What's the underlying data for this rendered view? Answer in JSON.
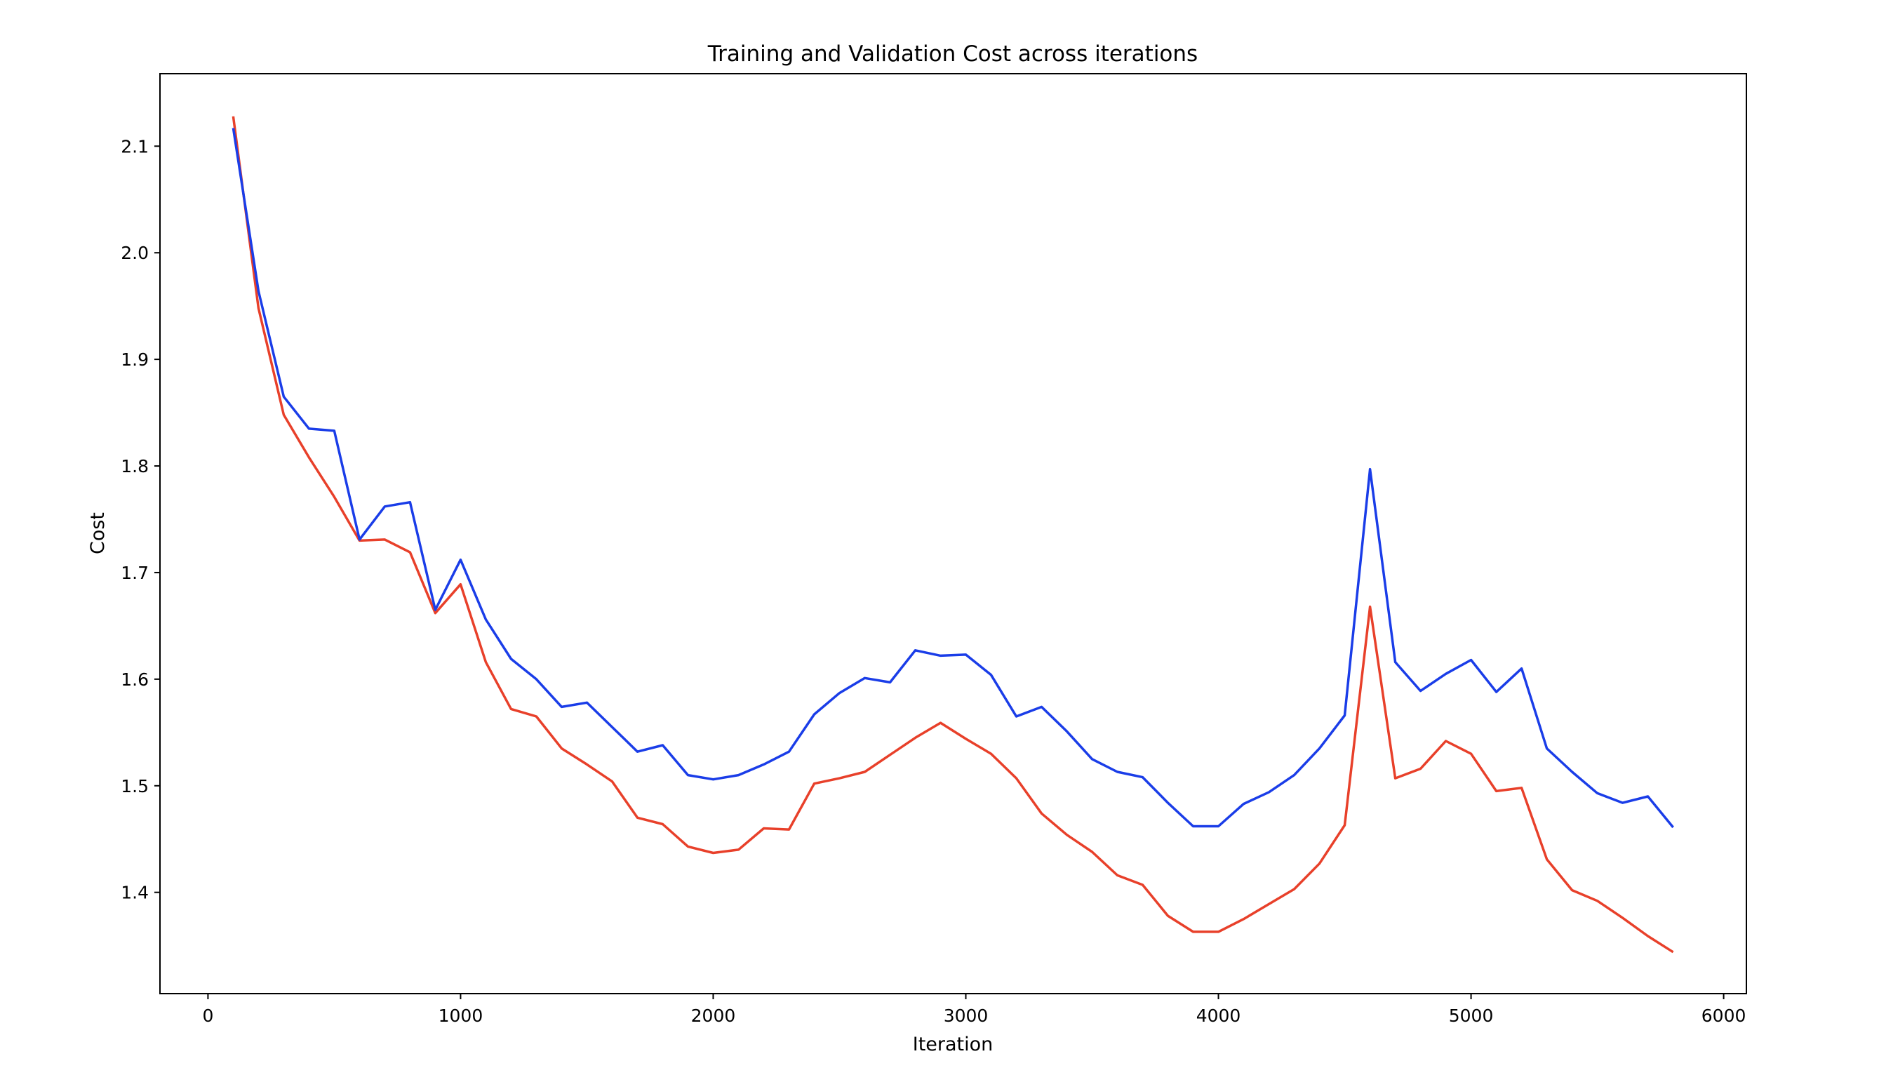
{
  "chart_data": {
    "type": "line",
    "title": "Training and Validation Cost across iterations",
    "xlabel": "Iteration",
    "ylabel": "Cost",
    "xlim": [
      -190,
      6090
    ],
    "ylim": [
      1.305,
      2.168
    ],
    "xticks": [
      0,
      1000,
      2000,
      3000,
      4000,
      5000,
      6000
    ],
    "xtick_labels": [
      "0",
      "1000",
      "2000",
      "3000",
      "4000",
      "5000",
      "6000"
    ],
    "yticks": [
      1.4,
      1.5,
      1.6,
      1.7,
      1.8,
      1.9,
      2.0,
      2.1
    ],
    "ytick_labels": [
      "1.4",
      "1.5",
      "1.6",
      "1.7",
      "1.8",
      "1.9",
      "2.0",
      "2.1"
    ],
    "grid": false,
    "legend": "none",
    "x": [
      100,
      200,
      300,
      400,
      500,
      600,
      700,
      800,
      900,
      1000,
      1100,
      1200,
      1300,
      1400,
      1500,
      1600,
      1700,
      1800,
      1900,
      2000,
      2100,
      2200,
      2300,
      2400,
      2500,
      2600,
      2700,
      2800,
      2900,
      3000,
      3100,
      3200,
      3300,
      3400,
      3500,
      3600,
      3700,
      3800,
      3900,
      4000,
      4100,
      4200,
      4300,
      4400,
      4500,
      4600,
      4700,
      4800,
      4900,
      5000,
      5100,
      5200,
      5300,
      5400,
      5500,
      5600,
      5700,
      5800
    ],
    "series": [
      {
        "color": "#e8402a",
        "values": [
          2.128,
          1.948,
          1.848,
          1.808,
          1.771,
          1.73,
          1.731,
          1.719,
          1.662,
          1.689,
          1.616,
          1.572,
          1.565,
          1.535,
          1.52,
          1.504,
          1.47,
          1.464,
          1.443,
          1.437,
          1.44,
          1.46,
          1.459,
          1.502,
          1.507,
          1.513,
          1.529,
          1.545,
          1.559,
          1.544,
          1.53,
          1.507,
          1.474,
          1.454,
          1.438,
          1.416,
          1.407,
          1.378,
          1.363,
          1.363,
          1.375,
          1.389,
          1.403,
          1.427,
          1.463,
          1.668,
          1.507,
          1.516,
          1.542,
          1.53,
          1.495,
          1.498,
          1.431,
          1.402,
          1.392,
          1.376,
          1.359,
          1.344
        ]
      },
      {
        "color": "#1a3de8",
        "values": [
          2.117,
          1.964,
          1.865,
          1.835,
          1.833,
          1.731,
          1.762,
          1.766,
          1.665,
          1.712,
          1.656,
          1.619,
          1.6,
          1.574,
          1.578,
          1.555,
          1.532,
          1.538,
          1.51,
          1.506,
          1.51,
          1.52,
          1.532,
          1.567,
          1.587,
          1.601,
          1.597,
          1.627,
          1.622,
          1.623,
          1.604,
          1.565,
          1.574,
          1.551,
          1.525,
          1.513,
          1.508,
          1.484,
          1.462,
          1.462,
          1.483,
          1.494,
          1.51,
          1.535,
          1.566,
          1.797,
          1.616,
          1.589,
          1.605,
          1.618,
          1.588,
          1.61,
          1.535,
          1.513,
          1.493,
          1.484,
          1.49,
          1.461
        ]
      }
    ]
  }
}
